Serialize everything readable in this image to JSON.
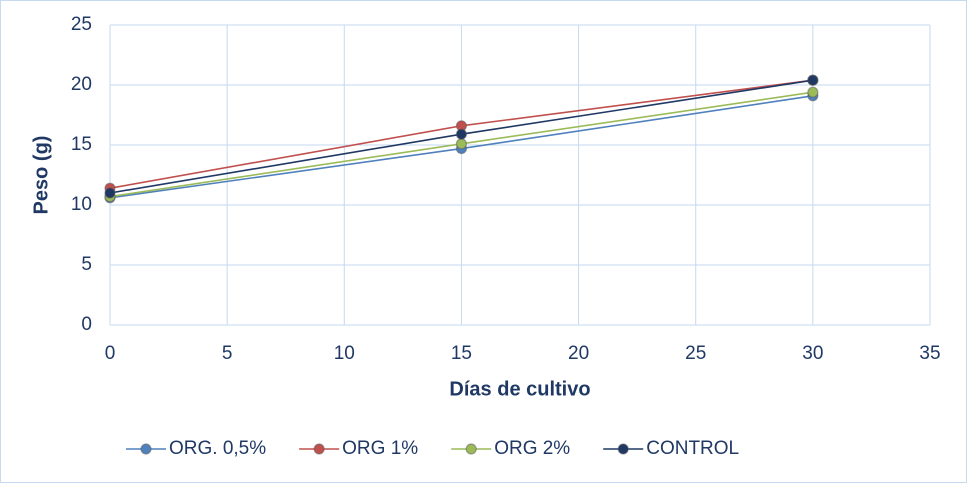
{
  "chart_data": {
    "type": "line",
    "x_label": "Días de cultivo",
    "y_label": "Peso (g)",
    "x": [
      0,
      15,
      30
    ],
    "series": [
      {
        "name": "ORG. 0,5%",
        "color": "#4f81bd",
        "values": [
          10.6,
          14.7,
          19.1
        ]
      },
      {
        "name": "ORG 1%",
        "color": "#c0504d",
        "values": [
          11.4,
          16.6,
          20.4
        ]
      },
      {
        "name": "ORG 2%",
        "color": "#9bbb59",
        "values": [
          10.7,
          15.1,
          19.4
        ]
      },
      {
        "name": "CONTROL",
        "color": "#1f3864",
        "values": [
          11.0,
          15.9,
          20.4
        ]
      }
    ],
    "xlim": [
      0,
      35
    ],
    "xticks": [
      0,
      5,
      10,
      15,
      20,
      25,
      30,
      35
    ],
    "ylim": [
      0,
      25
    ],
    "yticks": [
      0,
      5,
      10,
      15,
      20,
      25
    ],
    "grid": true,
    "legend": "bottom"
  }
}
